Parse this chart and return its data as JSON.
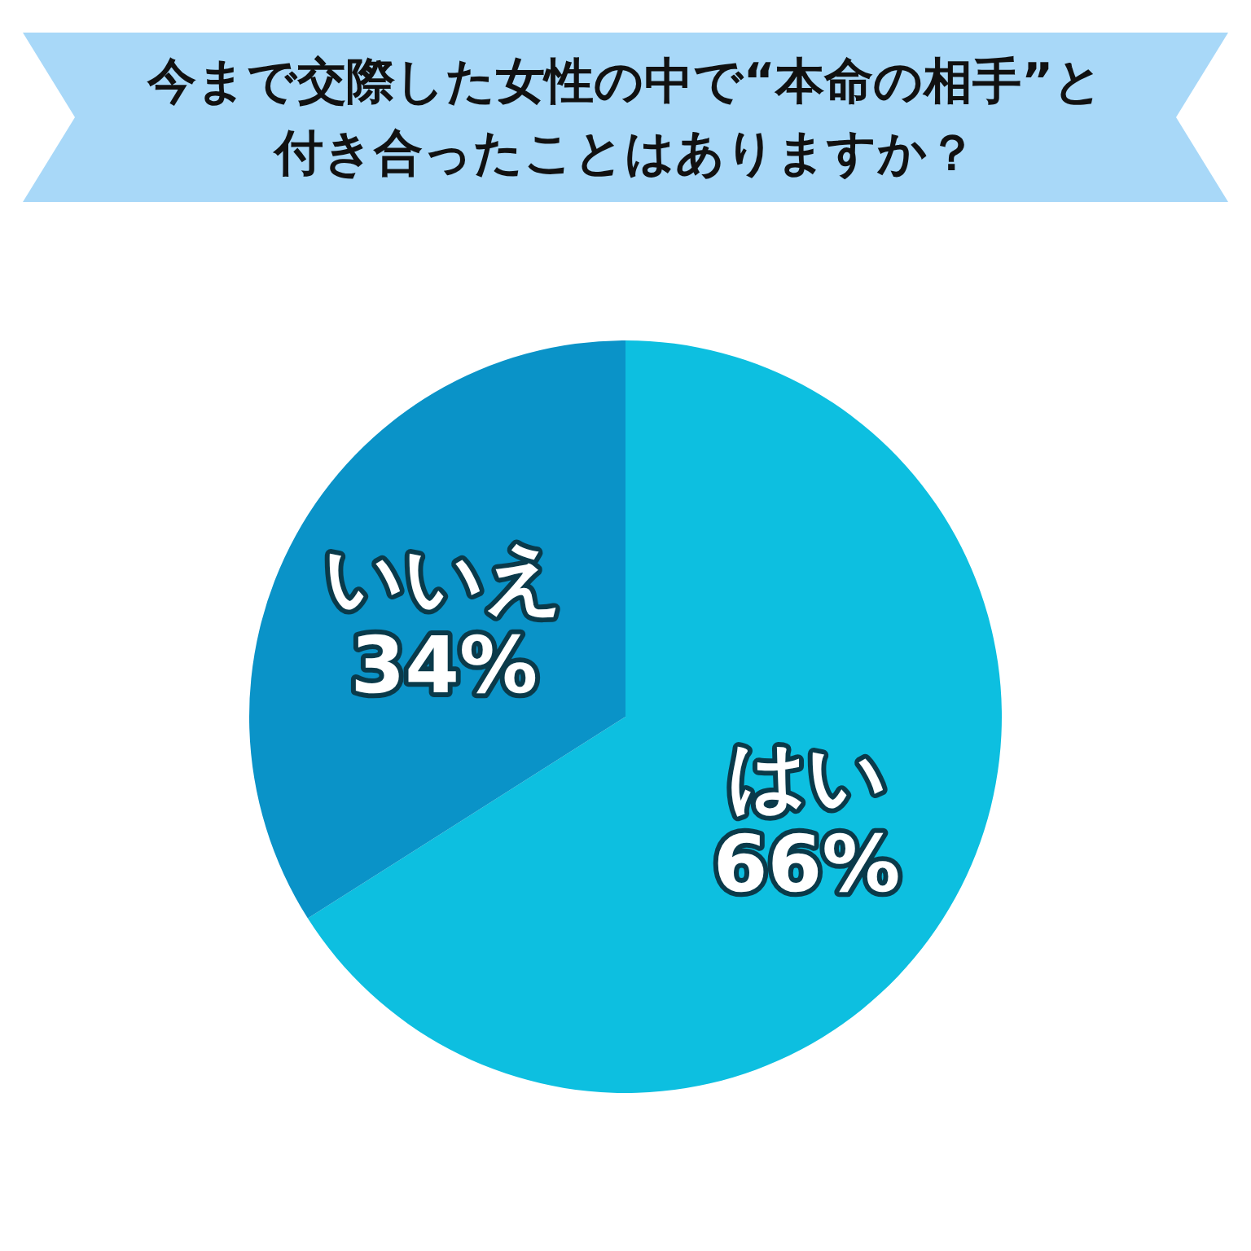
{
  "chart_data": {
    "type": "pie",
    "title": "今まで交際した女性の中で“本命の相手”と付き合ったことはありますか？",
    "categories": [
      "はい",
      "いいえ"
    ],
    "values": [
      66,
      34
    ],
    "colors": [
      "#0dbfe0",
      "#0a93c8"
    ],
    "value_labels": [
      "66%",
      "34%"
    ]
  }
}
